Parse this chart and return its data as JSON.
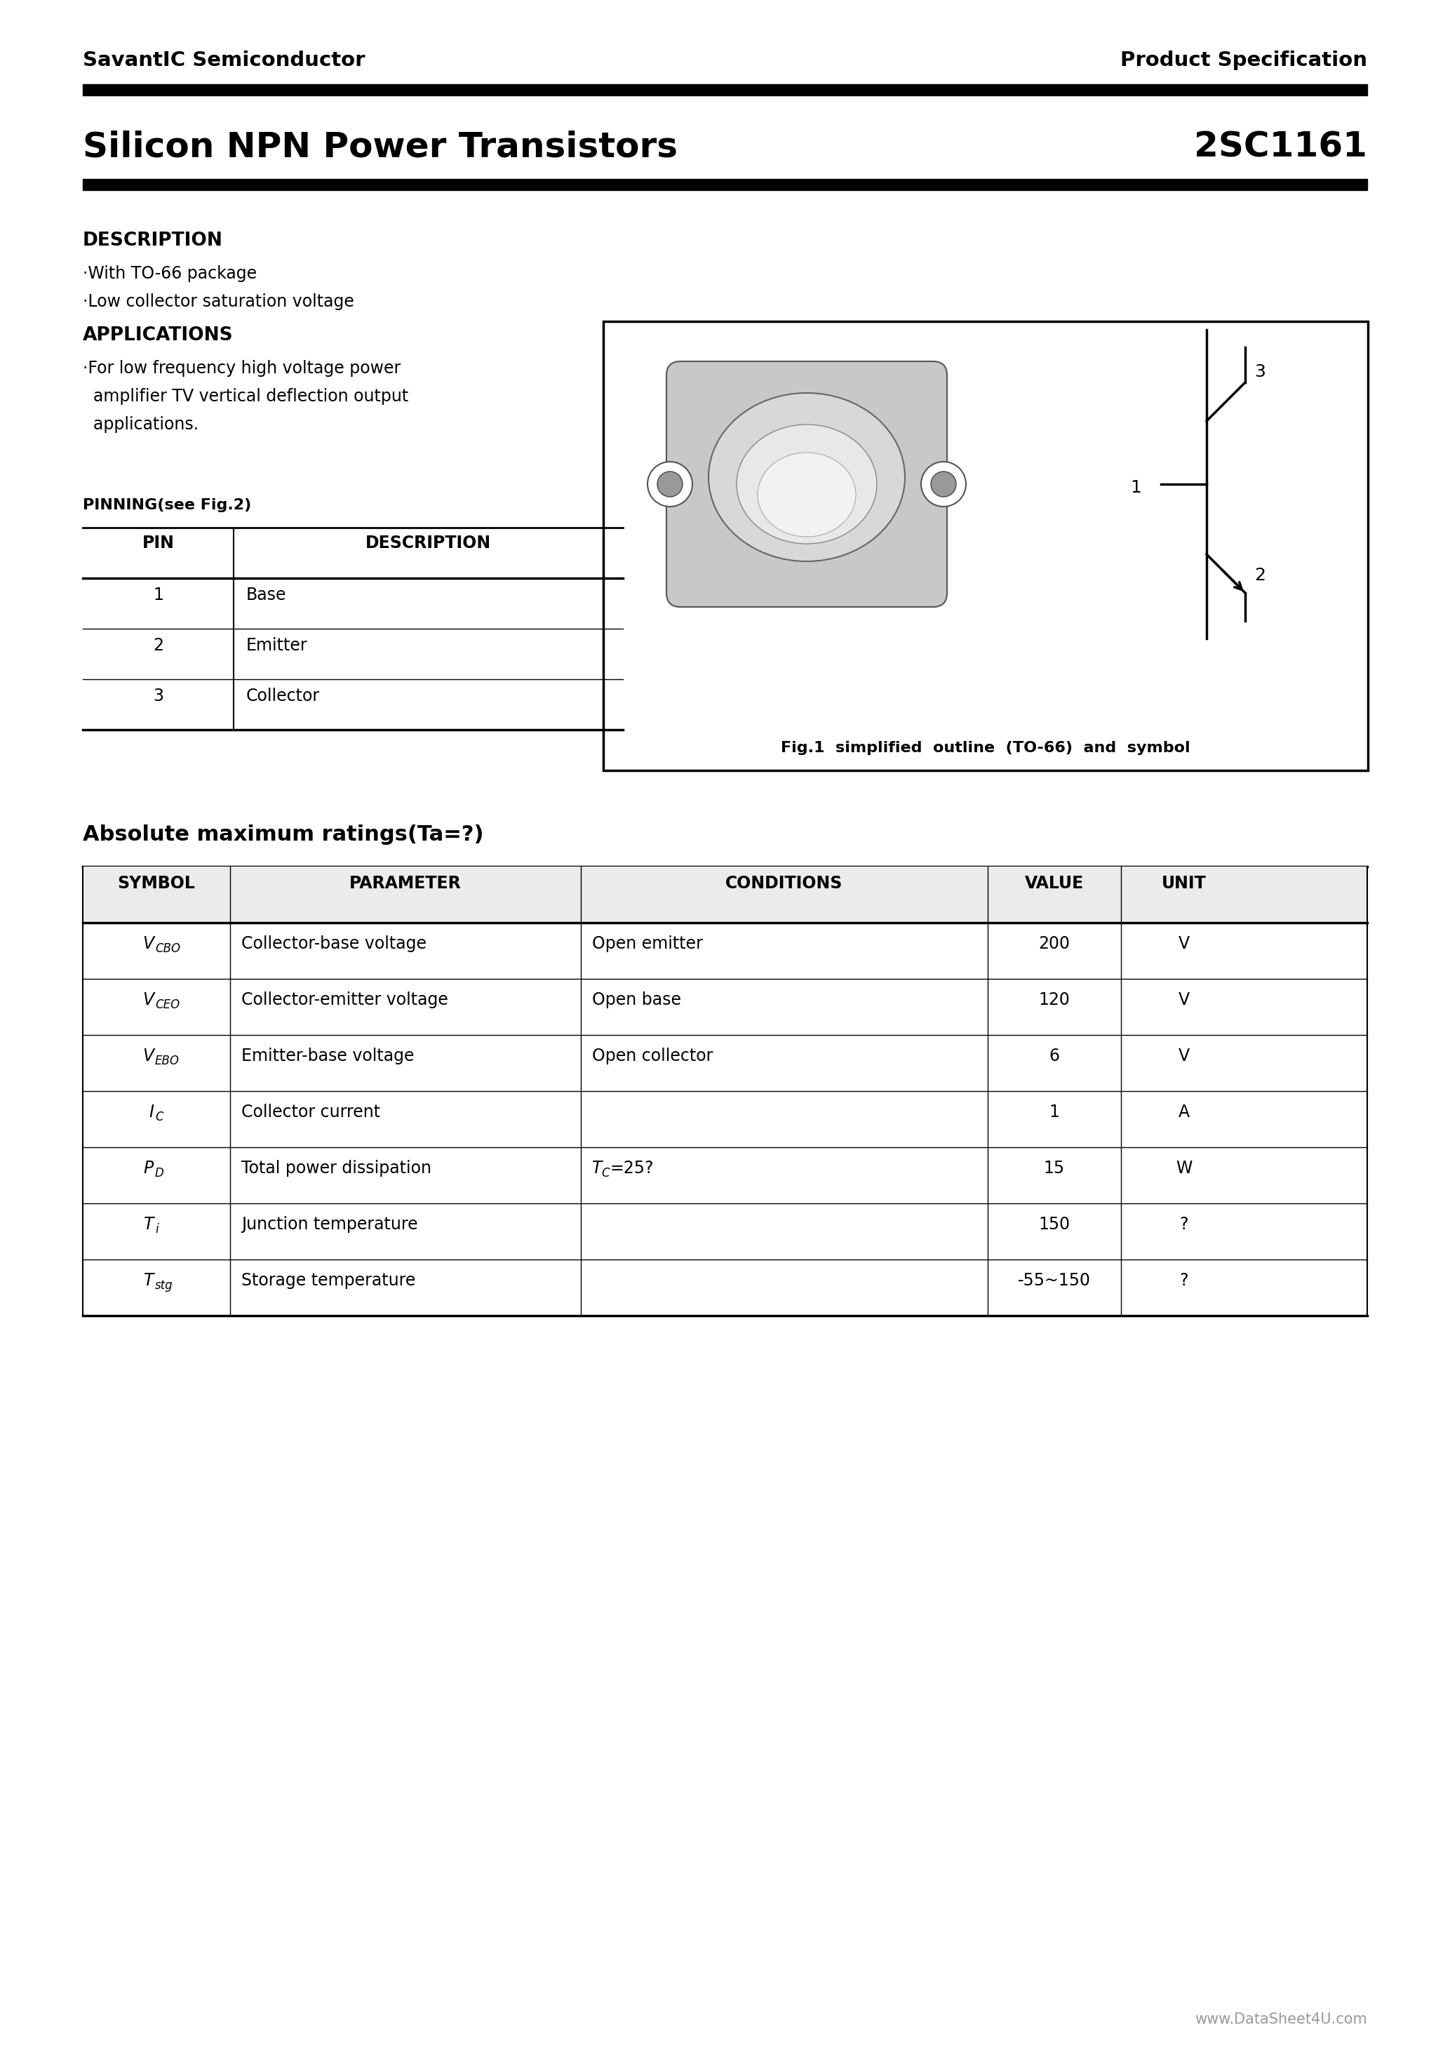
{
  "bg_color": "#ffffff",
  "text_color": "#000000",
  "header_left": "SavantIC Semiconductor",
  "header_right": "Product Specification",
  "title_left": "Silicon NPN Power Transistors",
  "title_right": "2SC1161",
  "section_description": "DESCRIPTION",
  "desc_bullets": [
    "·With TO-66 package",
    "·Low collector saturation voltage"
  ],
  "section_applications": "APPLICATIONS",
  "app_bullets": [
    "·For low frequency high voltage power",
    "  amplifier TV vertical deflection output",
    "  applications."
  ],
  "section_pinning": "PINNING(see Fig.2)",
  "pin_headers": [
    "PIN",
    "DESCRIPTION"
  ],
  "pin_rows": [
    [
      "1",
      "Base"
    ],
    [
      "2",
      "Emitter"
    ],
    [
      "3",
      "Collector"
    ]
  ],
  "fig_caption": "Fig.1  simplified  outline  (TO-66)  and  symbol",
  "section_abs": "Absolute maximum ratings(Ta=?)",
  "abs_headers": [
    "SYMBOL",
    "PARAMETER",
    "CONDITIONS",
    "VALUE",
    "UNIT"
  ],
  "abs_sym_main": [
    "V",
    "V",
    "V",
    "I",
    "P",
    "T",
    "T"
  ],
  "abs_sym_sub": [
    "CBO",
    "CEO",
    "EBO",
    "C",
    "D",
    "i",
    "stg"
  ],
  "abs_params": [
    "Collector-base voltage",
    "Collector-emitter voltage",
    "Emitter-base voltage",
    "Collector current",
    "Total power dissipation",
    "Junction temperature",
    "Storage temperature"
  ],
  "abs_conds": [
    "Open emitter",
    "Open base",
    "Open collector",
    "",
    "TC=25?",
    "",
    ""
  ],
  "abs_values": [
    "200",
    "120",
    "6",
    "1",
    "15",
    "150",
    "-55~150"
  ],
  "abs_units": [
    "V",
    "V",
    "V",
    "A",
    "W",
    "?",
    "?"
  ],
  "footer": "www.DataSheet4U.com"
}
